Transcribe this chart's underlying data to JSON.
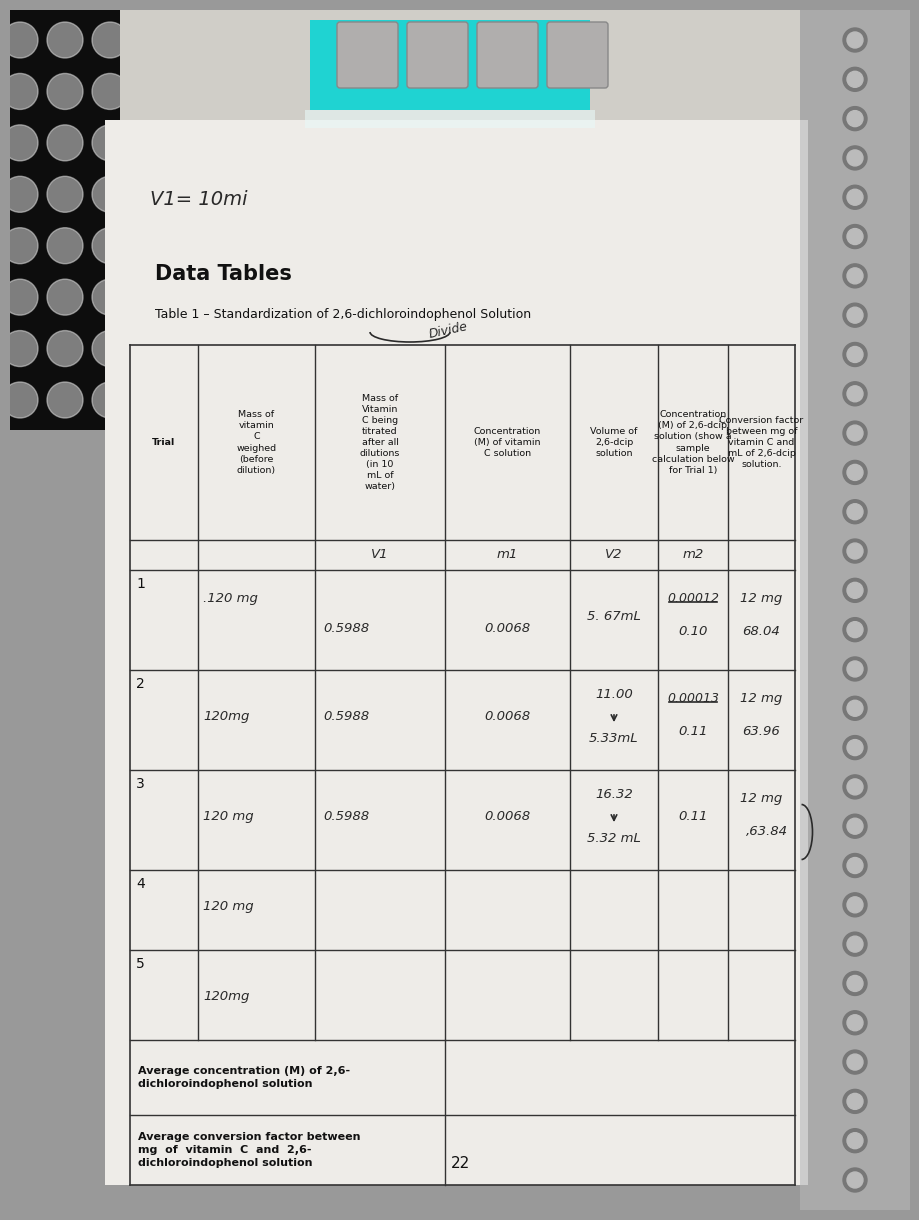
{
  "page_number": "22",
  "header_note": "V1= 10mi",
  "title": "Data Tables",
  "subtitle": "Table 1 – Standardization of 2,6-dichloroindophenol Solution",
  "divide_annotation": "Divide",
  "col_headers": [
    "Trial",
    "Mass of\nvitamin\nC\nweighed\n(before\ndilution)",
    "Mass of\nVitamin\nC being\ntitrated\nafter all\ndilutions\n(in 10\nmL of\nwater)",
    "Concentration\n(M) of vitamin\nC solution",
    "Volume of\n2,6-dcip\nsolution",
    "Concentration\n(M) of 2,6-dcip\nsolution (show a\nsample\ncalculation below\nfor Trial 1)",
    "Conversion factor\nbetween mg of\nvitamin C and\nmL of 2,6-dcip\nsolution."
  ],
  "rows": [
    {
      "trial": "1",
      "mass_before": ".120 mg",
      "mass_after": "0.5988",
      "conc_vitc": "0.0068",
      "vol_line1": "5. 67mL",
      "vol_line2": "",
      "conc_struck": "0.00012",
      "conc_val": "0.10",
      "conv1": "12 mg",
      "conv2": "68.04"
    },
    {
      "trial": "2",
      "mass_before": "120mg",
      "mass_after": "0.5988",
      "conc_vitc": "0.0068",
      "vol_line1": "11.00",
      "vol_line2": "5.33mL",
      "conc_struck": "0.00013",
      "conc_val": "0.11",
      "conv1": "12 mg",
      "conv2": "63.96"
    },
    {
      "trial": "3",
      "mass_before": "120 mg",
      "mass_after": "0.5988",
      "conc_vitc": "0.0068",
      "vol_line1": "16.32",
      "vol_line2": "5.32 mL",
      "conc_struck": "",
      "conc_val": "0.11",
      "conv1": "12 mg",
      "conv2": ",63.84"
    },
    {
      "trial": "4",
      "mass_before": "120 mg",
      "mass_after": "",
      "conc_vitc": "",
      "vol_line1": "",
      "vol_line2": "",
      "conc_struck": "",
      "conc_val": "",
      "conv1": "",
      "conv2": ""
    },
    {
      "trial": "5",
      "mass_before": "120mg",
      "mass_after": "",
      "conc_vitc": "",
      "vol_line1": "",
      "vol_line2": "",
      "conc_struck": "",
      "conc_val": "",
      "conv1": "",
      "conv2": ""
    }
  ],
  "avg_conc_label": "Average concentration (M) of 2,6-\ndichloroindophenol solution",
  "avg_conv_label": "Average conversion factor between\nmg  of  vitamin  C  and  2,6-\ndichloroindophenol solution",
  "paper_color": "#eeece8",
  "line_color": "#333333",
  "text_color": "#111111",
  "handwriting_color": "#2a2a2a",
  "bg_left_color": "#111111",
  "bg_right_color": "#aaaaaa",
  "cyan_color": "#00d4d4",
  "spiral_color": "#888888"
}
